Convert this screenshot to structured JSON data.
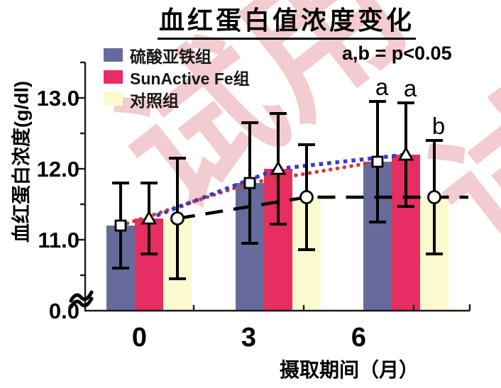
{
  "title": "血红蛋白值浓度变化",
  "annotation": "a,b =  p<0.05",
  "watermark": {
    "text": "试用",
    "color": "#f2ccd0"
  },
  "chart_data": {
    "type": "bar",
    "title": "血红蛋白值浓度变化",
    "xlabel": "摄取期间（月）",
    "ylabel": "血红蛋白浓度(g/dl)",
    "categories": [
      "0",
      "3",
      "6"
    ],
    "ylim_displayed": [
      10.0,
      13.5
    ],
    "axis_break_at_zero": true,
    "y_ticks": {
      "origin_label": "0.0",
      "major": [
        {
          "value": 11.0,
          "label": "11.0"
        },
        {
          "value": 12.0,
          "label": "12.0"
        },
        {
          "value": 13.0,
          "label": "13.0"
        }
      ],
      "minor": [
        10.5,
        11.5,
        12.5,
        13.5
      ]
    },
    "legend_position": "top-left",
    "significance": {
      "note": "a,b =  p<0.05",
      "month_6_labels": [
        "a",
        "a",
        "b"
      ]
    },
    "series": [
      {
        "name": "硫酸亚铁组",
        "bar_color": "#666b9b",
        "marker": "square",
        "line": {
          "color": "#d23a38",
          "style": "dotted-round"
        },
        "values": [
          11.2,
          11.8,
          12.1
        ],
        "sd": [
          0.6,
          0.85,
          0.85
        ]
      },
      {
        "name": "SunActive Fe组",
        "bar_color": "#e62e62",
        "marker": "triangle",
        "line": {
          "color": "#3a3ac2",
          "style": "dotted-square"
        },
        "values": [
          11.3,
          12.0,
          12.2
        ],
        "sd": [
          0.5,
          0.78,
          0.73
        ]
      },
      {
        "name": "对照组",
        "bar_color": "#fbfacf",
        "marker": "circle",
        "line": {
          "color": "#000000",
          "style": "dashed"
        },
        "values": [
          11.3,
          11.6,
          11.6
        ],
        "sd": [
          0.85,
          0.74,
          0.8
        ]
      }
    ]
  }
}
